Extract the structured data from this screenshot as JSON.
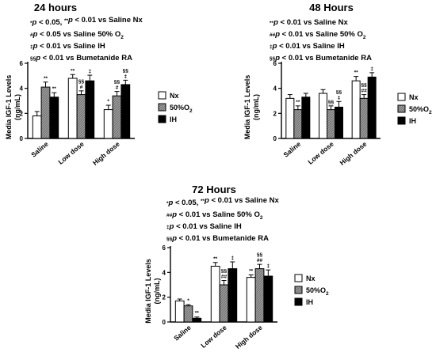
{
  "colors": {
    "Nx": "#ffffff",
    "50%O2": "#8a8a8a",
    "IH": "#000000",
    "axis": "#000000"
  },
  "chart_data": [
    {
      "type": "bar",
      "title": "24 hours",
      "ylabel_line1": "Media IGF-1 Levels",
      "ylabel_line2": "(ng/mL)",
      "ylim": [
        0,
        6
      ],
      "yticks": [
        "0",
        "2",
        "4",
        "6"
      ],
      "categories": [
        "Saline",
        "Low dose",
        "High dose"
      ],
      "series": [
        {
          "name": "Nx",
          "values": [
            1.8,
            4.8,
            2.3
          ],
          "errors": [
            0.35,
            0.3,
            0.35
          ],
          "sig": [
            "",
            "**",
            "*"
          ]
        },
        {
          "name": "50%O2",
          "values": [
            4.1,
            3.5,
            3.4
          ],
          "errors": [
            0.4,
            0.3,
            0.35
          ],
          "sig": [
            "**",
            "§§ #",
            "§§ #"
          ]
        },
        {
          "name": "IH",
          "values": [
            3.3,
            4.6,
            4.3
          ],
          "errors": [
            0.35,
            0.45,
            0.35
          ],
          "sig": [
            "**",
            "‡",
            "§§ ‡"
          ]
        }
      ],
      "notes": [
        {
          "parts": [
            [
              "sup",
              "*"
            ],
            [
              "it",
              "p"
            ],
            [
              "n",
              " < 0.05, "
            ],
            [
              "sup",
              "**"
            ],
            [
              "it",
              "p"
            ],
            [
              "n",
              " < 0.01 vs Saline Nx"
            ]
          ]
        },
        {
          "parts": [
            [
              "sup",
              "#"
            ],
            [
              "it",
              "p"
            ],
            [
              "n",
              " < 0.05 vs Saline 50% O"
            ],
            [
              "sub",
              "2"
            ]
          ]
        },
        {
          "parts": [
            [
              "sup",
              "‡"
            ],
            [
              "it",
              "p"
            ],
            [
              "n",
              " < 0.01 vs Saline IH"
            ]
          ]
        },
        {
          "parts": [
            [
              "sup",
              "§§"
            ],
            [
              "it",
              "p"
            ],
            [
              "n",
              " < 0.01 vs Bumetanide RA"
            ]
          ]
        }
      ],
      "legend": [
        "Nx",
        "50%O",
        "IH"
      ],
      "legend_sub": [
        "",
        "2",
        ""
      ]
    },
    {
      "type": "bar",
      "title": "48 Hours",
      "ylabel_line1": "Media IGF-1 Levels",
      "ylabel_line2": "(ng/mL)",
      "ylim": [
        0,
        6
      ],
      "yticks": [
        "0",
        "2",
        "4",
        "6"
      ],
      "categories": [
        "Saline",
        "Low dose",
        "High dose"
      ],
      "series": [
        {
          "name": "Nx",
          "values": [
            3.2,
            3.6,
            4.6
          ],
          "errors": [
            0.3,
            0.3,
            0.35
          ],
          "sig": [
            "",
            "",
            "**"
          ]
        },
        {
          "name": "50%O2",
          "values": [
            2.3,
            2.3,
            3.2
          ],
          "errors": [
            0.3,
            0.3,
            0.3
          ],
          "sig": [
            "**",
            "§§",
            "§§ ##"
          ]
        },
        {
          "name": "IH",
          "values": [
            3.3,
            2.5,
            4.9
          ],
          "errors": [
            0.3,
            0.45,
            0.35
          ],
          "sig": [
            "",
            "§§ ‡",
            "‡"
          ]
        }
      ],
      "notes": [
        {
          "parts": [
            [
              "sup",
              "**"
            ],
            [
              "it",
              "p"
            ],
            [
              "n",
              " < 0.01 vs Saline Nx"
            ]
          ]
        },
        {
          "parts": [
            [
              "sup",
              "##"
            ],
            [
              "it",
              "p"
            ],
            [
              "n",
              " < 0.01 vs Saline 50% O"
            ],
            [
              "sub",
              "2"
            ]
          ]
        },
        {
          "parts": [
            [
              "sup",
              "‡"
            ],
            [
              "it",
              "p"
            ],
            [
              "n",
              " < 0.01 vs Saline IH"
            ]
          ]
        },
        {
          "parts": [
            [
              "sup",
              "§§"
            ],
            [
              "it",
              "p"
            ],
            [
              "n",
              " < 0.01 vs Bumetanide RA"
            ]
          ]
        }
      ],
      "legend": [
        "Nx",
        "50%O",
        "IH"
      ],
      "legend_sub": [
        "",
        "2",
        ""
      ]
    },
    {
      "type": "bar",
      "title": "72 Hours",
      "ylabel_line1": "Media IGF-1 Levels",
      "ylabel_line2": "(ng/mL)",
      "ylim": [
        0,
        6
      ],
      "yticks": [
        "0",
        "2",
        "4",
        "6"
      ],
      "categories": [
        "Saline",
        "Low dose",
        "High dose"
      ],
      "series": [
        {
          "name": "Nx",
          "values": [
            1.7,
            4.5,
            3.6
          ],
          "errors": [
            0.15,
            0.3,
            0.2
          ],
          "sig": [
            "",
            "**",
            "**"
          ]
        },
        {
          "name": "50%O2",
          "values": [
            1.3,
            3.0,
            4.3
          ],
          "errors": [
            0.1,
            0.35,
            0.35
          ],
          "sig": [
            "*",
            "§§ ##",
            "§§ ##"
          ]
        },
        {
          "name": "IH",
          "values": [
            0.3,
            4.3,
            3.7
          ],
          "errors": [
            0.1,
            0.55,
            0.5
          ],
          "sig": [
            "**",
            "‡",
            "‡"
          ]
        }
      ],
      "notes": [
        {
          "parts": [
            [
              "sup",
              "*"
            ],
            [
              "it",
              "p"
            ],
            [
              "n",
              " < 0.05, "
            ],
            [
              "sup",
              "**"
            ],
            [
              "it",
              "p"
            ],
            [
              "n",
              " < 0.01 vs Saline Nx"
            ]
          ]
        },
        {
          "parts": [
            [
              "sup",
              "##"
            ],
            [
              "it",
              "p"
            ],
            [
              "n",
              " < 0.01 vs Saline 50% O"
            ],
            [
              "sub",
              "2"
            ]
          ]
        },
        {
          "parts": [
            [
              "sup",
              "‡"
            ],
            [
              "it",
              "p"
            ],
            [
              "n",
              " < 0.01 vs Saline IH"
            ]
          ]
        },
        {
          "parts": [
            [
              "sup",
              "§§"
            ],
            [
              "it",
              "p"
            ],
            [
              "n",
              " < 0.01 vs Bumetanide RA"
            ]
          ]
        }
      ],
      "legend": [
        "Nx",
        "50%O",
        "IH"
      ],
      "legend_sub": [
        "",
        "2",
        ""
      ]
    }
  ]
}
